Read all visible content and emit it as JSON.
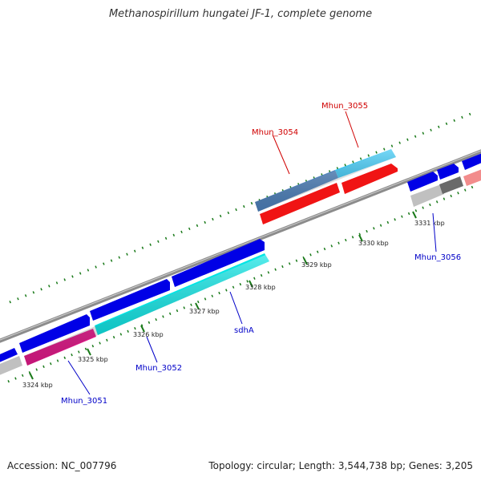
{
  "title": "Methanospirillum hungatei JF-1, complete genome",
  "footer": {
    "accession": "Accession: NC_007796",
    "topology": "Topology: circular; Length: 3,544,738 bp; Genes: 3,205"
  },
  "kbp_labels": [
    "3324 kbp",
    "3325 kbp",
    "3326 kbp",
    "3327 kbp",
    "3328 kbp",
    "3329 kbp",
    "3330 kbp",
    "3331 kbp"
  ],
  "gene_labels": {
    "mhun_3051": "Mhun_3051",
    "mhun_3052": "Mhun_3052",
    "sdha": "sdhA",
    "mhun_3054": "Mhun_3054",
    "mhun_3055": "Mhun_3055",
    "mhun_3056": "Mhun_3056"
  },
  "colors": {
    "backbone": "#8c8c8c",
    "forward_strand": "#0000e6",
    "cog_cyan": "#00e5e5",
    "cog_magenta": "#e6198c",
    "cog_red": "#f01414",
    "cog_steelblue": "#4f84c0",
    "cog_skyblue": "#2ec4f4",
    "cog_gray": "#c0c0c0",
    "cog_darkgray": "#6a6a6a",
    "cog_pink": "#f28c8c",
    "tick_green": "#1a7a1a",
    "label_blue": "#0000c8",
    "label_red": "#d00000"
  }
}
